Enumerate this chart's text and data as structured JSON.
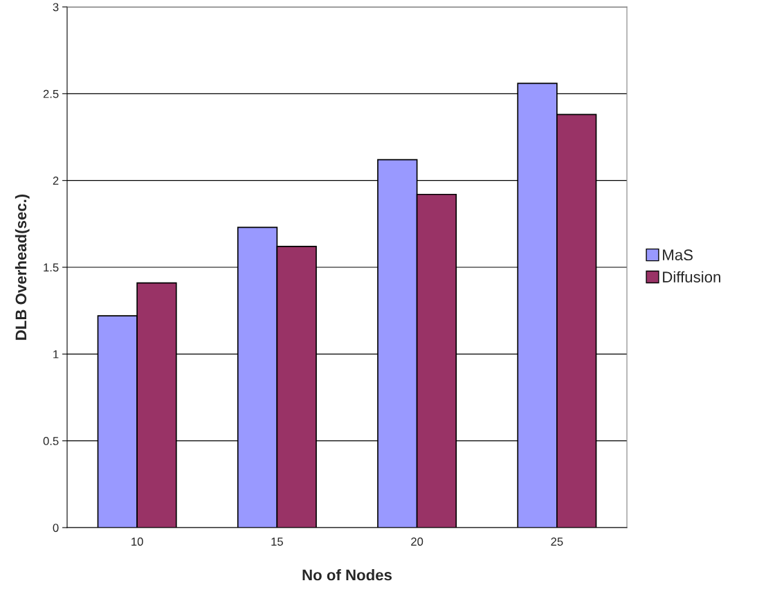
{
  "chart_data": {
    "type": "bar",
    "xlabel": "No of Nodes",
    "ylabel": "DLB Overhead(sec.)",
    "categories": [
      "10",
      "15",
      "20",
      "25"
    ],
    "series": [
      {
        "name": "MaS",
        "color": "#9999ff",
        "values": [
          1.22,
          1.73,
          2.12,
          2.56
        ]
      },
      {
        "name": "Diffusion",
        "color": "#993366",
        "values": [
          1.41,
          1.62,
          1.92,
          2.38
        ]
      }
    ],
    "ylim": [
      0,
      3
    ],
    "yticks": [
      0,
      0.5,
      1,
      1.5,
      2,
      2.5,
      3
    ],
    "grid": "y",
    "legend": "right"
  }
}
